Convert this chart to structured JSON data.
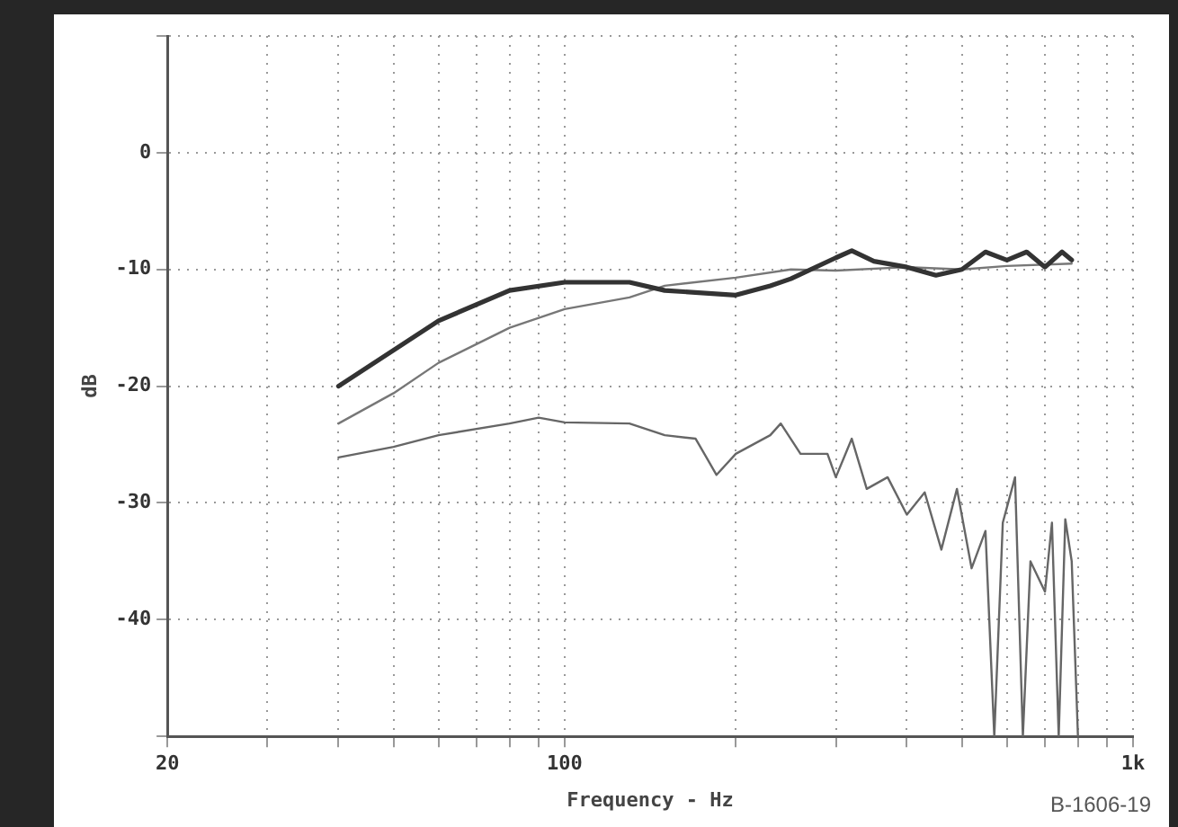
{
  "chart_data": {
    "type": "line",
    "xlabel": "Frequency - Hz",
    "ylabel": "dB",
    "annotations": [
      "B-1606-19"
    ],
    "log": "x",
    "grid": true,
    "marker": "none",
    "line_style": "solid",
    "xlim": [
      20,
      1000
    ],
    "xticks": [
      20,
      {
        "value": 30,
        "label": null
      },
      {
        "value": 40,
        "label": null
      },
      {
        "value": 50,
        "label": null
      },
      {
        "value": 60,
        "label": null
      },
      {
        "value": 70,
        "label": null
      },
      {
        "value": 80,
        "label": null
      },
      {
        "value": 90,
        "label": null
      },
      100,
      {
        "value": 200,
        "label": null
      },
      {
        "value": 300,
        "label": null
      },
      {
        "value": 400,
        "label": null
      },
      {
        "value": 500,
        "label": null
      },
      {
        "value": 600,
        "label": null
      },
      {
        "value": 700,
        "label": null
      },
      {
        "value": 800,
        "label": null
      },
      {
        "value": 900,
        "label": null
      },
      {
        "value": 1000,
        "label": "1k"
      }
    ],
    "ylim": [
      -50,
      10
    ],
    "yticks": [
      {
        "value": -50,
        "label": null
      },
      -40,
      -30,
      -20,
      -10,
      0,
      {
        "value": 10,
        "label": null
      }
    ],
    "series": [
      {
        "color": "#333333",
        "x": [
          40,
          60,
          80,
          100,
          130,
          150,
          200,
          230,
          250,
          300,
          320,
          350,
          400,
          450,
          500,
          550,
          600,
          650,
          700,
          750,
          780
        ],
        "values": [
          -20,
          -14.4,
          -11.8,
          -11.1,
          -11.1,
          -11.8,
          -12.2,
          -11.4,
          -10.8,
          -9,
          -8.4,
          -9.3,
          -9.8,
          -10.5,
          -10,
          -8.5,
          -9.2,
          -8.5,
          -9.8,
          -8.5,
          -9.2
        ]
      },
      {
        "color": "#777777",
        "x": [
          40,
          50,
          60,
          80,
          100,
          130,
          150,
          200,
          250,
          300,
          400,
          500,
          600,
          780
        ],
        "values": [
          -23.2,
          -20.6,
          -18,
          -15,
          -13.4,
          -12.4,
          -11.4,
          -10.7,
          -10,
          -10.1,
          -9.8,
          -10,
          -9.7,
          -9.5
        ]
      },
      {
        "color": "#666666",
        "x": [
          40,
          50,
          60,
          80,
          90,
          100,
          130,
          150,
          170,
          185,
          200,
          230,
          240,
          260,
          290,
          300,
          320,
          340,
          370,
          400,
          430,
          460,
          490,
          520,
          550,
          570,
          590,
          620,
          640,
          660,
          700,
          720,
          740,
          760,
          780,
          800
        ],
        "values": [
          -26.1,
          -25.2,
          -24.2,
          -23.2,
          -22.7,
          -23.1,
          -23.2,
          -24.2,
          -24.5,
          -27.6,
          -25.8,
          -24.2,
          -23.2,
          -25.8,
          -25.8,
          -27.8,
          -24.5,
          -28.8,
          -27.8,
          -31,
          -29.1,
          -34,
          -28.8,
          -35.6,
          -32.4,
          -50,
          -31.7,
          -27.8,
          -50,
          -35,
          -37.6,
          -31.7,
          -50,
          -31.4,
          -35,
          -50
        ]
      }
    ]
  }
}
